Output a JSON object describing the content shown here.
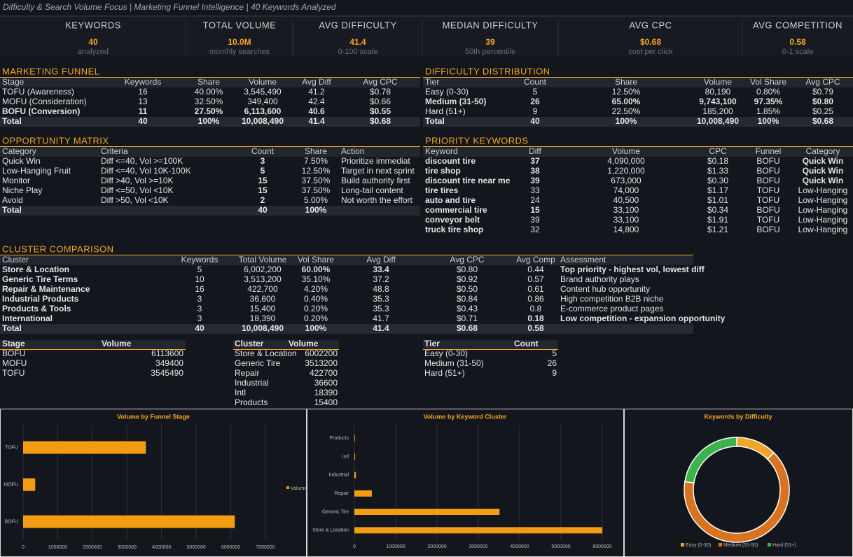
{
  "header": {
    "title": "Difficulty & Search Volume Focus  |  Marketing Funnel Intelligence  |  40 Keywords Analyzed"
  },
  "kpis": [
    {
      "label": "KEYWORDS",
      "value": "40",
      "sub": "analyzed"
    },
    {
      "label": "TOTAL VOLUME",
      "value": "10.0M",
      "sub": "monthly searches"
    },
    {
      "label": "AVG DIFFICULTY",
      "value": "41.4",
      "sub": "0-100 scale"
    },
    {
      "label": "MEDIAN DIFFICULTY",
      "value": "39",
      "sub": "50th percentile"
    },
    {
      "label": "AVG CPC",
      "value": "$0.68",
      "sub": "cost per click"
    },
    {
      "label": "AVG COMPETITION",
      "value": "0.58",
      "sub": "0-1 scale"
    }
  ],
  "marketing_funnel": {
    "title": "MARKETING FUNNEL",
    "columns": [
      "Stage",
      "Keywords",
      "Share",
      "Volume",
      "Avg Diff",
      "Avg CPC"
    ],
    "rows": [
      [
        "TOFU (Awareness)",
        "16",
        "40.00%",
        "3,545,490",
        "41.2",
        "$0.78"
      ],
      [
        "MOFU (Consideration)",
        "13",
        "32.50%",
        "349,400",
        "42.4",
        "$0.66"
      ],
      [
        "BOFU (Conversion)",
        "11",
        "27.50%",
        "6,113,600",
        "40.6",
        "$0.55"
      ],
      [
        "Total",
        "40",
        "100%",
        "10,008,490",
        "41.4",
        "$0.68"
      ]
    ]
  },
  "difficulty_distribution": {
    "title": "DIFFICULTY DISTRIBUTION",
    "columns": [
      "Tier",
      "Count",
      "Share",
      "Volume",
      "Vol Share",
      "Avg CPC"
    ],
    "rows": [
      [
        "Easy (0-30)",
        "5",
        "12.50%",
        "80,190",
        "0.80%",
        "$0.79"
      ],
      [
        "Medium (31-50)",
        "26",
        "65.00%",
        "9,743,100",
        "97.35%",
        "$0.80"
      ],
      [
        "Hard (51+)",
        "9",
        "22.50%",
        "185,200",
        "1.85%",
        "$0.25"
      ],
      [
        "Total",
        "40",
        "100%",
        "10,008,490",
        "100%",
        "$0.68"
      ]
    ]
  },
  "opportunity_matrix": {
    "title": "OPPORTUNITY MATRIX",
    "columns": [
      "Category",
      "Criteria",
      "Count",
      "Share",
      "Action"
    ],
    "rows": [
      [
        "Quick Win",
        "Diff <=40, Vol >=100K",
        "3",
        "7.50%",
        "Prioritize immediat"
      ],
      [
        "Low-Hanging Fruit",
        "Diff <=40, Vol 10K-100K",
        "5",
        "12.50%",
        "Target in next sprint"
      ],
      [
        "Monitor",
        "Diff >40, Vol >=10K",
        "15",
        "37.50%",
        "Build authority first"
      ],
      [
        "Niche Play",
        "Diff <=50, Vol <10K",
        "15",
        "37.50%",
        "Long-tail content"
      ],
      [
        "Avoid",
        "Diff >50, Vol <10K",
        "2",
        "5.00%",
        "Not worth the effort"
      ],
      [
        "Total",
        "",
        "40",
        "100%",
        ""
      ]
    ]
  },
  "priority_keywords": {
    "title": "PRIORITY KEYWORDS",
    "columns": [
      "Keyword",
      "Diff",
      "Volume",
      "CPC",
      "Funnel",
      "Category"
    ],
    "rows": [
      [
        "discount tire",
        "37",
        "4,090,000",
        "$0.18",
        "BOFU",
        "Quick Win"
      ],
      [
        "tire shop",
        "38",
        "1,220,000",
        "$1.33",
        "BOFU",
        "Quick Win"
      ],
      [
        "discount tire near me",
        "39",
        "673,000",
        "$0.30",
        "BOFU",
        "Quick Win"
      ],
      [
        "tire tires",
        "33",
        "74,000",
        "$1.17",
        "TOFU",
        "Low-Hanging"
      ],
      [
        "auto and tire",
        "24",
        "40,500",
        "$1.01",
        "TOFU",
        "Low-Hanging"
      ],
      [
        "commercial tire",
        "15",
        "33,100",
        "$0.34",
        "BOFU",
        "Low-Hanging"
      ],
      [
        "conveyor belt",
        "39",
        "33,100",
        "$1.91",
        "TOFU",
        "Low-Hanging"
      ],
      [
        "truck tire shop",
        "32",
        "14,800",
        "$1.21",
        "BOFU",
        "Low-Hanging"
      ]
    ]
  },
  "cluster_comparison": {
    "title": "CLUSTER COMPARISON",
    "columns": [
      "Cluster",
      "Keywords",
      "Total Volume",
      "Vol Share",
      "Avg Diff",
      "Avg CPC",
      "Avg Comp",
      "Assessment"
    ],
    "rows": [
      [
        "Store & Location",
        "5",
        "6,002,200",
        "60.00%",
        "33.4",
        "$0.80",
        "0.44",
        "Top priority - highest vol, lowest diff"
      ],
      [
        "Generic Tire Terms",
        "10",
        "3,513,200",
        "35.10%",
        "37.2",
        "$0.92",
        "0.57",
        "Brand authority plays"
      ],
      [
        "Repair & Maintenance",
        "16",
        "422,700",
        "4.20%",
        "48.8",
        "$0.50",
        "0.61",
        "Content hub opportunity"
      ],
      [
        "Industrial Products",
        "3",
        "36,600",
        "0.40%",
        "35.3",
        "$0.84",
        "0.86",
        "High competition B2B niche"
      ],
      [
        "Products & Tools",
        "3",
        "15,400",
        "0.20%",
        "35.3",
        "$0.43",
        "0.8",
        "E-commerce product pages"
      ],
      [
        "International",
        "3",
        "18,390",
        "0.20%",
        "41.7",
        "$0.71",
        "0.18",
        "Low competition - expansion opportunity"
      ],
      [
        "Total",
        "40",
        "10,008,490",
        "100%",
        "41.4",
        "$0.68",
        "0.58",
        ""
      ]
    ]
  },
  "stage_volume": {
    "columns": [
      "Stage",
      "Volume"
    ],
    "rows": [
      [
        "BOFU",
        "6113600"
      ],
      [
        "MOFU",
        "349400"
      ],
      [
        "TOFU",
        "3545490"
      ]
    ]
  },
  "cluster_volume": {
    "columns": [
      "Cluster",
      "Volume"
    ],
    "rows": [
      [
        "Store & Location",
        "6002200"
      ],
      [
        "Generic Tire",
        "3513200"
      ],
      [
        "Repair",
        "422700"
      ],
      [
        "Industrial",
        "36600"
      ],
      [
        "Intl",
        "18390"
      ],
      [
        "Products",
        "15400"
      ]
    ]
  },
  "tier_count": {
    "columns": [
      "Tier",
      "Count"
    ],
    "rows": [
      [
        "Easy (0-30)",
        "5"
      ],
      [
        "Medium (31-50)",
        "26"
      ],
      [
        "Hard (51+)",
        "9"
      ]
    ]
  },
  "chart_data": [
    {
      "type": "bar",
      "orientation": "horizontal",
      "title": "Volume by Funnel Stage",
      "categories": [
        "BOFU",
        "MOFU",
        "TOFU"
      ],
      "series": [
        {
          "name": "Volume",
          "color": "#f39c12",
          "values": [
            6113600,
            349400,
            3545490
          ]
        }
      ],
      "xlim": [
        0,
        7000000
      ],
      "xticks": [
        0,
        1000000,
        2000000,
        3000000,
        4000000,
        5000000,
        6000000,
        7000000
      ],
      "grid": true,
      "legend": "right"
    },
    {
      "type": "bar",
      "orientation": "horizontal",
      "title": "Volume by Keyword Cluster",
      "categories": [
        "Store & Location",
        "Generic Tire",
        "Repair",
        "Industrial",
        "Intl",
        "Products"
      ],
      "color": "#f39c12",
      "values": [
        6002200,
        3513200,
        422700,
        36600,
        18390,
        15400
      ],
      "xlim": [
        0,
        6000000
      ],
      "xticks": [
        0,
        1000000,
        2000000,
        3000000,
        4000000,
        5000000,
        6000000
      ],
      "grid": true
    },
    {
      "type": "doughnut",
      "title": "Keywords by Difficulty",
      "categories": [
        "Easy (0-30)",
        "Medium (31-50)",
        "Hard (51+)"
      ],
      "values": [
        5,
        26,
        9
      ],
      "colors": [
        "#f0a52a",
        "#d9731f",
        "#3cb44b"
      ],
      "legend": "bottom"
    }
  ]
}
